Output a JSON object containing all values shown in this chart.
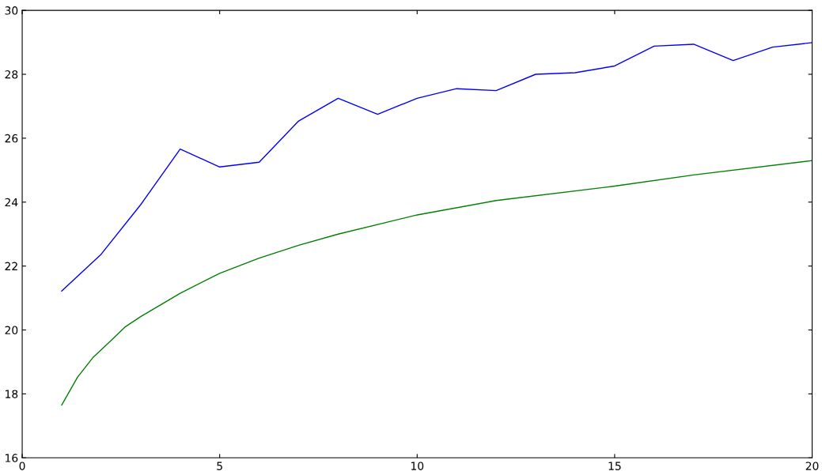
{
  "chart_data": {
    "type": "line",
    "xlim": [
      0,
      20
    ],
    "ylim": [
      16,
      30
    ],
    "xticks": [
      0,
      5,
      10,
      15,
      20
    ],
    "yticks": [
      16,
      18,
      20,
      22,
      24,
      26,
      28,
      30
    ],
    "grid": false,
    "legend": false,
    "marker": "none",
    "line_style": "solid",
    "series": [
      {
        "color": "#0000ff",
        "x": [
          1,
          2,
          3,
          4,
          5,
          6,
          7,
          8,
          9,
          10,
          11,
          12,
          13,
          14,
          15,
          16,
          17,
          18,
          19,
          20
        ],
        "values": [
          21.22,
          22.37,
          23.92,
          25.66,
          25.1,
          25.25,
          26.54,
          27.25,
          26.75,
          27.25,
          27.55,
          27.49,
          28.0,
          28.05,
          28.26,
          28.88,
          28.94,
          28.43,
          28.85,
          28.99
        ]
      },
      {
        "color": "#008000",
        "x": [
          1,
          1.4,
          1.8,
          2.2,
          2.6,
          3,
          4,
          5,
          6,
          7,
          8,
          10,
          12,
          15,
          17,
          20
        ],
        "values": [
          17.65,
          18.52,
          19.15,
          19.61,
          20.09,
          20.42,
          21.15,
          21.77,
          22.25,
          22.65,
          23.0,
          23.6,
          24.05,
          24.5,
          24.85,
          25.3
        ]
      }
    ]
  }
}
